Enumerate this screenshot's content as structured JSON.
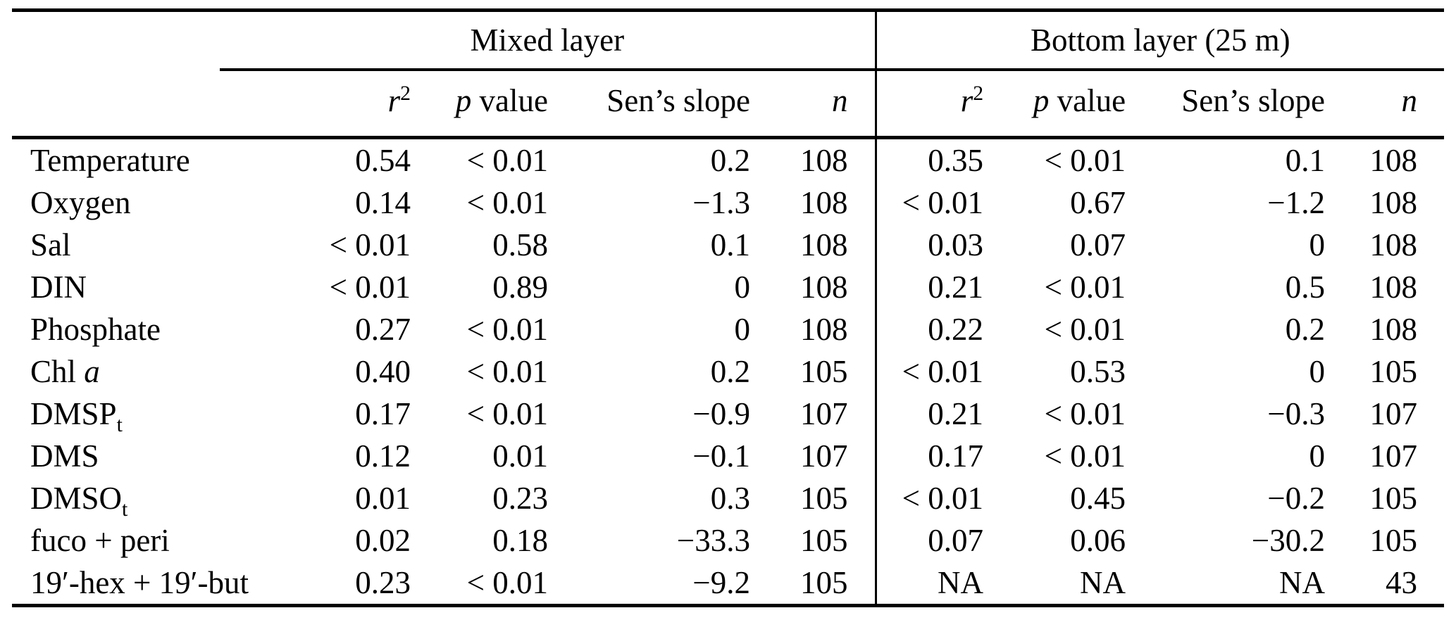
{
  "table": {
    "groups": [
      {
        "label": "Mixed layer"
      },
      {
        "label": "Bottom layer (25 m)"
      }
    ],
    "columns": [
      {
        "name": "r2",
        "segs": [
          [
            "r",
            "i"
          ],
          [
            "2",
            "sup"
          ]
        ]
      },
      {
        "name": "p-value",
        "segs": [
          [
            "p",
            "i"
          ],
          [
            " value",
            ""
          ]
        ]
      },
      {
        "name": "sens-slope",
        "segs": [
          [
            "Sen’s slope",
            ""
          ]
        ]
      },
      {
        "name": "n",
        "segs": [
          [
            "n",
            "i"
          ]
        ]
      }
    ],
    "rows": [
      {
        "label": [
          [
            "Temperature",
            ""
          ]
        ],
        "mixed": [
          "0.54",
          "< 0.01",
          "0.2",
          "108"
        ],
        "bottom": [
          "0.35",
          "< 0.01",
          "0.1",
          "108"
        ]
      },
      {
        "label": [
          [
            "Oxygen",
            ""
          ]
        ],
        "mixed": [
          "0.14",
          "< 0.01",
          "−1.3",
          "108"
        ],
        "bottom": [
          "< 0.01",
          "0.67",
          "−1.2",
          "108"
        ]
      },
      {
        "label": [
          [
            "Sal",
            ""
          ]
        ],
        "mixed": [
          "< 0.01",
          "0.58",
          "0.1",
          "108"
        ],
        "bottom": [
          "0.03",
          "0.07",
          "0",
          "108"
        ]
      },
      {
        "label": [
          [
            "DIN",
            ""
          ]
        ],
        "mixed": [
          "< 0.01",
          "0.89",
          "0",
          "108"
        ],
        "bottom": [
          "0.21",
          "< 0.01",
          "0.5",
          "108"
        ]
      },
      {
        "label": [
          [
            "Phosphate",
            ""
          ]
        ],
        "mixed": [
          "0.27",
          "< 0.01",
          "0",
          "108"
        ],
        "bottom": [
          "0.22",
          "< 0.01",
          "0.2",
          "108"
        ]
      },
      {
        "label": [
          [
            "Chl ",
            ""
          ],
          [
            "a",
            "i"
          ]
        ],
        "mixed": [
          "0.40",
          "< 0.01",
          "0.2",
          "105"
        ],
        "bottom": [
          "< 0.01",
          "0.53",
          "0",
          "105"
        ]
      },
      {
        "label": [
          [
            "DMSP",
            ""
          ],
          [
            "t",
            "sub"
          ]
        ],
        "mixed": [
          "0.17",
          "< 0.01",
          "−0.9",
          "107"
        ],
        "bottom": [
          "0.21",
          "< 0.01",
          "−0.3",
          "107"
        ]
      },
      {
        "label": [
          [
            "DMS",
            ""
          ]
        ],
        "mixed": [
          "0.12",
          "0.01",
          "−0.1",
          "107"
        ],
        "bottom": [
          "0.17",
          "< 0.01",
          "0",
          "107"
        ]
      },
      {
        "label": [
          [
            "DMSO",
            ""
          ],
          [
            "t",
            "sub"
          ]
        ],
        "mixed": [
          "0.01",
          "0.23",
          "0.3",
          "105"
        ],
        "bottom": [
          "< 0.01",
          "0.45",
          "−0.2",
          "105"
        ]
      },
      {
        "label": [
          [
            "fuco + peri",
            ""
          ]
        ],
        "mixed": [
          "0.02",
          "0.18",
          "−33.3",
          "105"
        ],
        "bottom": [
          "0.07",
          "0.06",
          "−30.2",
          "105"
        ]
      },
      {
        "label": [
          [
            "19′-hex + 19′-but",
            ""
          ]
        ],
        "mixed": [
          "0.23",
          "< 0.01",
          "−9.2",
          "105"
        ],
        "bottom": [
          "NA",
          "NA",
          "NA",
          "43"
        ]
      }
    ]
  }
}
